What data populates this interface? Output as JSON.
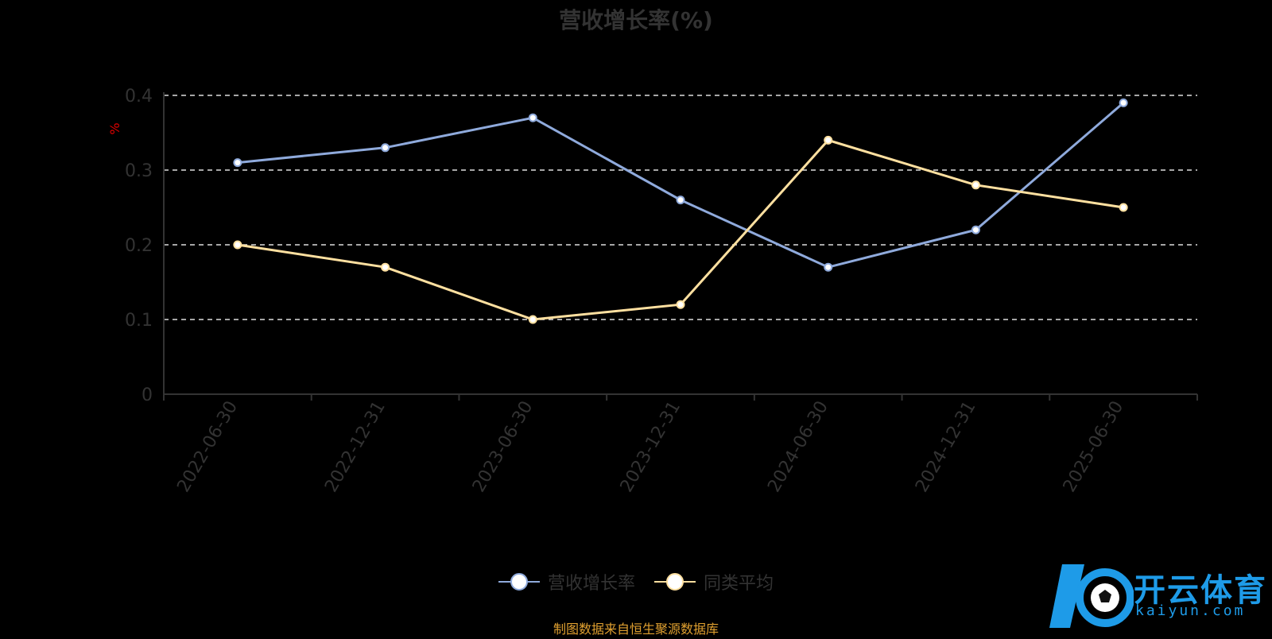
{
  "title": "营收增长率(%)",
  "chart_data": {
    "type": "line",
    "categories": [
      "2022-06-30",
      "2022-12-31",
      "2023-06-30",
      "2023-12-31",
      "2024-06-30",
      "2024-12-31",
      "2025-06-30"
    ],
    "ylabel": "%",
    "ylim": [
      0,
      0.4
    ],
    "yticks": [
      "0",
      "0.1",
      "0.2",
      "0.3",
      "0.4"
    ],
    "grid": true,
    "legend_position": "bottom",
    "series": [
      {
        "name": "营收增长率",
        "values": [
          0.31,
          0.33,
          0.37,
          0.26,
          0.17,
          0.22,
          0.39
        ],
        "color": "#8faadc"
      },
      {
        "name": "同类平均",
        "values": [
          0.2,
          0.17,
          0.1,
          0.12,
          0.34,
          0.28,
          0.25
        ],
        "color": "#ffe0a0"
      }
    ]
  },
  "legend": {
    "items": [
      "营收增长率",
      "同类平均"
    ]
  },
  "source": "制图数据来自恒生聚源数据库",
  "watermark": {
    "brand": "开云体育",
    "site": "kaiyun.com"
  }
}
